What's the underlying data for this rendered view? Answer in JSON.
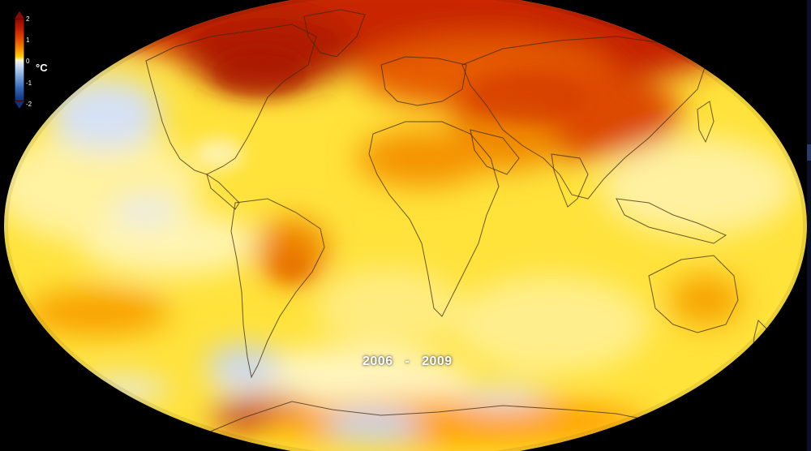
{
  "map": {
    "projection": "Robinson",
    "variable": "surface temperature anomaly",
    "period_label": {
      "start": "2006",
      "separator": "-",
      "end": "2009"
    }
  },
  "legend": {
    "unit": "°C",
    "ticks": [
      "2",
      "1",
      "0",
      "-1",
      "-2"
    ],
    "colors": {
      "max": "#8e0a00",
      "high": "#e64a00",
      "warm": "#ffd400",
      "neutral": "#fff7cf",
      "cool": "#7fa8dc",
      "min": "#13307a"
    }
  },
  "colors": {
    "background": "#000000",
    "coastline": "#3a2a10"
  }
}
